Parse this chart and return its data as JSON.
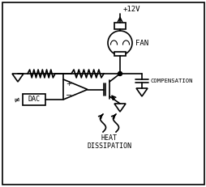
{
  "bg_color": "#ffffff",
  "line_color": "#000000",
  "fig_width": 2.55,
  "fig_height": 2.31,
  "dpi": 100,
  "labels": {
    "v12": "+12V",
    "fan": "FAN",
    "compensation": "COMPENSATION",
    "heat": "HEAT\nDISSIPATION",
    "dac": "DAC"
  }
}
